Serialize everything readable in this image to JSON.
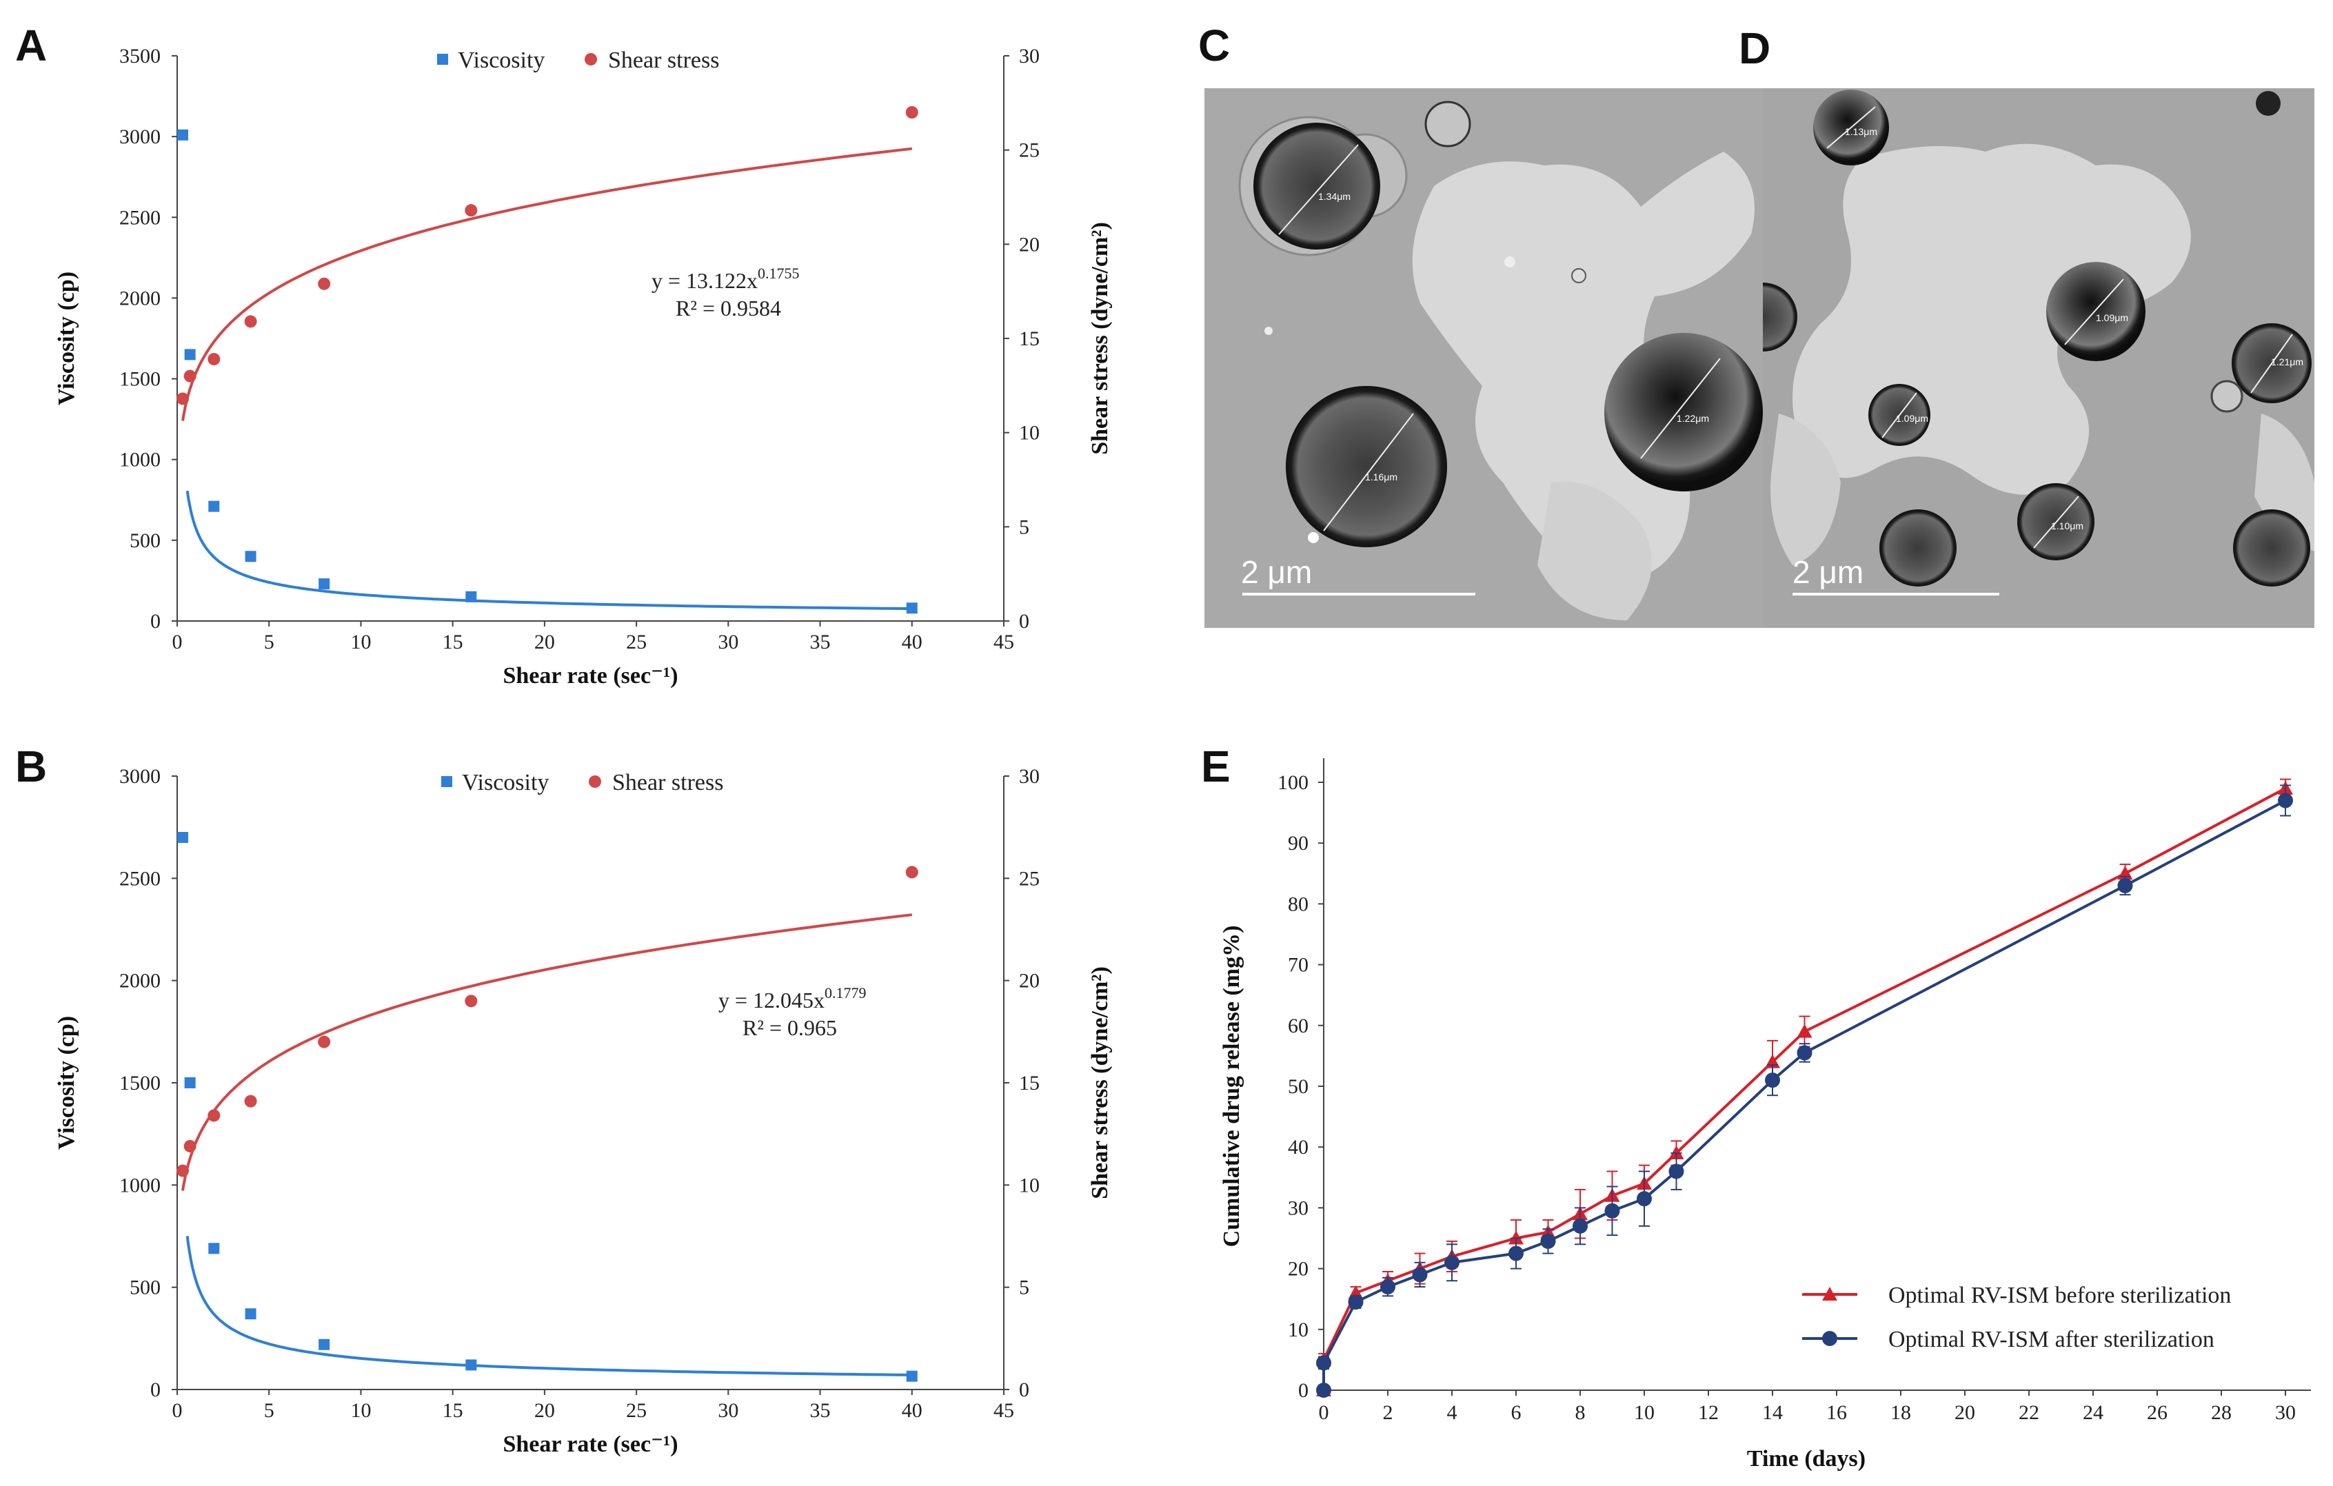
{
  "panels": {
    "A": "A",
    "B": "B",
    "C": "C",
    "D": "D",
    "E": "E"
  },
  "chart_data": [
    {
      "id": "A",
      "type": "scatter",
      "title": "",
      "xlabel": "Shear rate (sec⁻¹)",
      "ylabel": "Viscosity (cp)",
      "y2label": "Shear stress (dyne/cm²)",
      "xlim": [
        0,
        45
      ],
      "ylim": [
        0,
        3500
      ],
      "y2lim": [
        0,
        30
      ],
      "xticks": [
        0,
        5,
        10,
        15,
        20,
        25,
        30,
        35,
        40,
        45
      ],
      "yticks": [
        0,
        500,
        1000,
        1500,
        2000,
        2500,
        3000,
        3500
      ],
      "y2ticks": [
        0,
        5,
        10,
        15,
        20,
        25,
        30
      ],
      "legend": [
        "Viscosity",
        "Shear stress"
      ],
      "legend_position": "top-center",
      "series": [
        {
          "name": "Viscosity",
          "axis": "left",
          "color": "#2f7fd6",
          "x": [
            0.3,
            0.7,
            2,
            4,
            8,
            16,
            40
          ],
          "y": [
            3010,
            1650,
            710,
            400,
            230,
            150,
            80
          ],
          "fit": {
            "a": 580,
            "b": -0.55,
            "from": 0.55
          }
        },
        {
          "name": "Shear stress",
          "axis": "right",
          "color": "#d04848",
          "x": [
            0.3,
            0.7,
            2,
            4,
            8,
            16,
            40
          ],
          "y": [
            11.8,
            13.0,
            13.9,
            15.9,
            17.9,
            21.8,
            27.0
          ],
          "fit": {
            "a": 13.122,
            "b": 0.1755,
            "from": 0.3
          }
        }
      ],
      "equation": "y = 13.122x",
      "exponent": "0.1755",
      "r2": "R² = 0.9584"
    },
    {
      "id": "B",
      "type": "scatter",
      "title": "",
      "xlabel": "Shear rate (sec⁻¹)",
      "ylabel": "Viscosity (cp)",
      "y2label": "Shear stress (dyne/cm²)",
      "xlim": [
        0,
        45
      ],
      "ylim": [
        0,
        3000
      ],
      "y2lim": [
        0,
        30
      ],
      "xticks": [
        0,
        5,
        10,
        15,
        20,
        25,
        30,
        35,
        40,
        45
      ],
      "yticks": [
        0,
        500,
        1000,
        1500,
        2000,
        2500,
        3000
      ],
      "y2ticks": [
        0,
        5,
        10,
        15,
        20,
        25,
        30
      ],
      "legend": [
        "Viscosity",
        "Shear stress"
      ],
      "legend_position": "top-center",
      "series": [
        {
          "name": "Viscosity",
          "axis": "left",
          "color": "#2f7fd6",
          "x": [
            0.3,
            0.7,
            2,
            4,
            8,
            16,
            40
          ],
          "y": [
            2700,
            1500,
            690,
            370,
            220,
            120,
            65
          ],
          "fit": {
            "a": 540,
            "b": -0.55,
            "from": 0.55
          }
        },
        {
          "name": "Shear stress",
          "axis": "right",
          "color": "#d04848",
          "x": [
            0.3,
            0.7,
            2,
            4,
            8,
            16,
            40
          ],
          "y": [
            10.7,
            11.9,
            13.4,
            14.1,
            17.0,
            19.0,
            25.3
          ],
          "fit": {
            "a": 12.045,
            "b": 0.1779,
            "from": 0.3
          }
        }
      ],
      "equation": "y = 12.045x",
      "exponent": "0.1779",
      "r2": "R² = 0.965"
    },
    {
      "id": "E",
      "type": "line",
      "title": "",
      "xlabel": "Time (days)",
      "ylabel": "Cumulative drug release (mg%)",
      "xlim": [
        0,
        31
      ],
      "ylim": [
        0,
        105
      ],
      "xticks": [
        0,
        2,
        4,
        6,
        8,
        10,
        12,
        14,
        16,
        18,
        20,
        22,
        24,
        26,
        28,
        30
      ],
      "yticks": [
        0,
        10,
        20,
        30,
        40,
        50,
        60,
        70,
        80,
        90,
        100
      ],
      "legend_position": "bottom-right",
      "series": [
        {
          "name": "Optimal RV-ISM before sterilization",
          "color": "#d8202a",
          "marker": "triangle",
          "x": [
            0,
            0,
            1,
            2,
            3,
            4,
            6,
            7,
            8,
            9,
            10,
            11,
            14,
            15,
            25,
            30
          ],
          "y": [
            0,
            5,
            16,
            18,
            20,
            22,
            25,
            26,
            29,
            32,
            34,
            39,
            54,
            59,
            85,
            99
          ],
          "err": [
            0,
            1,
            1,
            1.5,
            2.5,
            2.5,
            3,
            2,
            4,
            4,
            3,
            2,
            3.5,
            2.5,
            1.5,
            1.5
          ]
        },
        {
          "name": "Optimal RV-ISM after sterilization",
          "color": "#263f7d",
          "marker": "circle",
          "x": [
            0,
            0,
            1,
            2,
            3,
            4,
            6,
            7,
            8,
            9,
            10,
            11,
            14,
            15,
            25,
            30
          ],
          "y": [
            0,
            4.5,
            14.5,
            17,
            19,
            21,
            22.5,
            24.5,
            27,
            29.5,
            31.5,
            36,
            51,
            55.5,
            83,
            97
          ],
          "err": [
            0,
            1,
            1,
            1.5,
            2,
            3,
            2.5,
            2,
            3,
            4,
            4.5,
            3,
            2.5,
            1.5,
            1.5,
            2.5
          ]
        }
      ]
    }
  ],
  "micrographs": {
    "C": {
      "scale_label": "2  μm",
      "measurements": [
        "1.34μm",
        "1.16μm",
        "1.22μm"
      ]
    },
    "D": {
      "scale_label": "2  μm",
      "measurements": [
        "1.13μm",
        "1.09μm",
        "1.21μm",
        "1.09μm",
        "1.10μm"
      ]
    }
  }
}
